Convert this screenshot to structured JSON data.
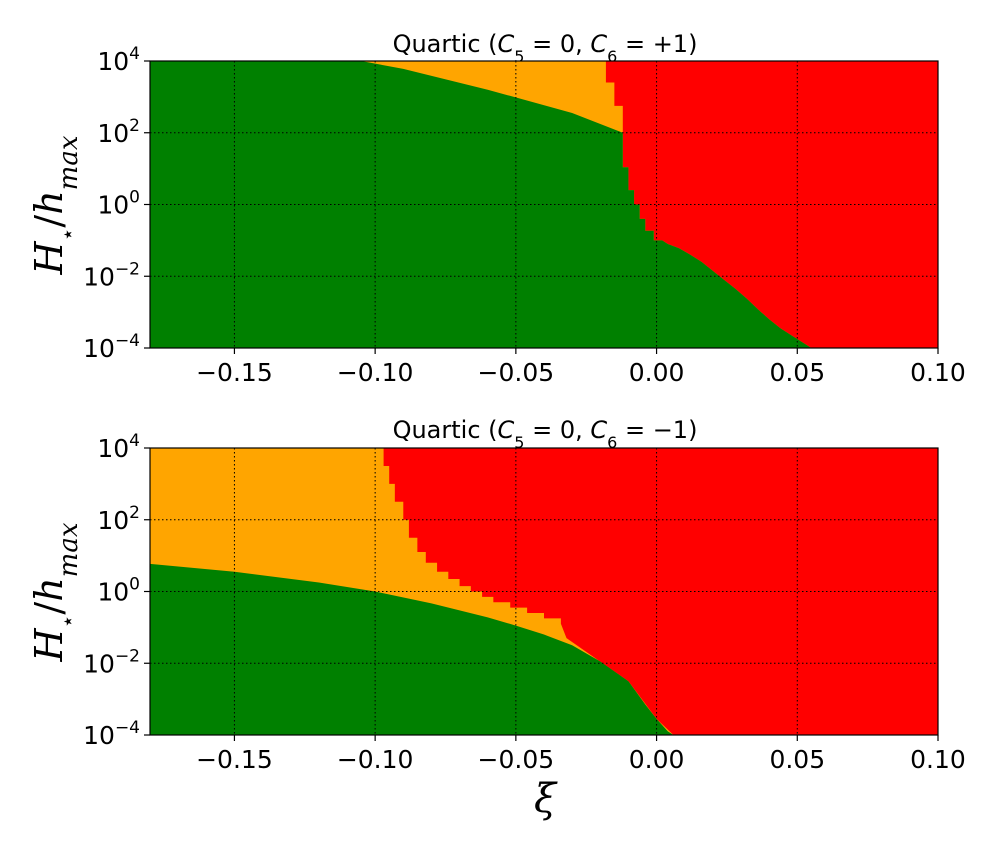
{
  "colors": {
    "green": "#008000",
    "orange": "#FFA500",
    "red": "#FF0000",
    "grid": "#000000"
  },
  "chart_data": [
    {
      "type": "heatmap",
      "title": "Quartic ($C_5 = 0$, $C_6 = +1$)",
      "title_prefix": "Quartic (",
      "title_var1": "C",
      "title_sub1": "5",
      "title_mid": " = 0, ",
      "title_var2": "C",
      "title_sub2": "6",
      "title_end": " = +1)",
      "xlabel": "",
      "ylabel": "H⋆/hmax",
      "ylabel_base": "H",
      "ylabel_sub": "⋆",
      "ylabel_div": "/",
      "ylabel_h": "h",
      "ylabel_sub2": "max",
      "x_scale": "linear",
      "y_scale": "log",
      "xlim": [
        -0.18,
        0.1
      ],
      "ylim_log10": [
        -4,
        4
      ],
      "xticks": [
        -0.15,
        -0.1,
        -0.05,
        0.0,
        0.05,
        0.1
      ],
      "xtick_labels": [
        "−0.15",
        "−0.10",
        "−0.05",
        "0.00",
        "0.05",
        "0.10"
      ],
      "yticks_log10": [
        -4,
        -2,
        0,
        2,
        4
      ],
      "ytick_bases": [
        "10",
        "10",
        "10",
        "10",
        "10"
      ],
      "ytick_exps": [
        "−4",
        "−2",
        "0",
        "2",
        "4"
      ],
      "grid": true,
      "regions": [
        "green",
        "orange",
        "red"
      ],
      "green_orange_boundary": [
        [
          -0.105,
          4.0
        ],
        [
          -0.09,
          3.78
        ],
        [
          -0.06,
          3.2
        ],
        [
          -0.03,
          2.55
        ],
        [
          -0.012,
          2.0
        ]
      ],
      "green_red_boundary_steps": [
        [
          -0.012,
          2.0
        ],
        [
          -0.012,
          1.04
        ],
        [
          -0.01,
          1.04
        ],
        [
          -0.01,
          0.4
        ],
        [
          -0.008,
          0.4
        ],
        [
          -0.008,
          0.0
        ],
        [
          -0.006,
          0.0
        ],
        [
          -0.006,
          -0.4
        ],
        [
          -0.004,
          -0.4
        ],
        [
          -0.004,
          -0.73
        ],
        [
          -0.001,
          -0.73
        ],
        [
          -0.001,
          -1.0
        ],
        [
          0.002,
          -1.0
        ],
        [
          0.004,
          -1.1
        ],
        [
          0.008,
          -1.22
        ],
        [
          0.012,
          -1.4
        ],
        [
          0.016,
          -1.6
        ],
        [
          0.02,
          -1.85
        ],
        [
          0.024,
          -2.1
        ],
        [
          0.028,
          -2.35
        ],
        [
          0.032,
          -2.62
        ],
        [
          0.036,
          -2.92
        ],
        [
          0.04,
          -3.2
        ],
        [
          0.044,
          -3.45
        ],
        [
          0.048,
          -3.65
        ],
        [
          0.052,
          -3.85
        ],
        [
          0.055,
          -4.0
        ]
      ],
      "orange_red_boundary_steps": [
        [
          -0.018,
          4.0
        ],
        [
          -0.018,
          3.4
        ],
        [
          -0.015,
          3.4
        ],
        [
          -0.015,
          2.75
        ],
        [
          -0.012,
          2.75
        ],
        [
          -0.012,
          2.0
        ]
      ]
    },
    {
      "type": "heatmap",
      "title": "Quartic ($C_5 = 0$, $C_6 = -1$)",
      "title_prefix": "Quartic (",
      "title_var1": "C",
      "title_sub1": "5",
      "title_mid": " = 0, ",
      "title_var2": "C",
      "title_sub2": "6",
      "title_end": " = −1)",
      "xlabel": "ξ",
      "ylabel": "H⋆/hmax",
      "ylabel_base": "H",
      "ylabel_sub": "⋆",
      "ylabel_div": "/",
      "ylabel_h": "h",
      "ylabel_sub2": "max",
      "x_scale": "linear",
      "y_scale": "log",
      "xlim": [
        -0.18,
        0.1
      ],
      "ylim_log10": [
        -4,
        4
      ],
      "xticks": [
        -0.15,
        -0.1,
        -0.05,
        0.0,
        0.05,
        0.1
      ],
      "xtick_labels": [
        "−0.15",
        "−0.10",
        "−0.05",
        "0.00",
        "0.05",
        "0.10"
      ],
      "yticks_log10": [
        -4,
        -2,
        0,
        2,
        4
      ],
      "ytick_bases": [
        "10",
        "10",
        "10",
        "10",
        "10"
      ],
      "ytick_exps": [
        "−4",
        "−2",
        "0",
        "2",
        "4"
      ],
      "grid": true,
      "regions": [
        "green",
        "orange",
        "red"
      ],
      "green_upper_boundary": [
        [
          -0.18,
          0.77
        ],
        [
          -0.15,
          0.55
        ],
        [
          -0.12,
          0.25
        ],
        [
          -0.1,
          0.0
        ],
        [
          -0.08,
          -0.33
        ],
        [
          -0.06,
          -0.72
        ],
        [
          -0.05,
          -0.95
        ],
        [
          -0.04,
          -1.2
        ],
        [
          -0.03,
          -1.5
        ],
        [
          -0.02,
          -1.95
        ],
        [
          -0.01,
          -2.5
        ],
        [
          -0.004,
          -3.15
        ],
        [
          0.0,
          -3.55
        ],
        [
          0.004,
          -3.9
        ],
        [
          0.006,
          -4.0
        ]
      ],
      "orange_red_boundary_steps": [
        [
          -0.097,
          4.0
        ],
        [
          -0.097,
          3.5
        ],
        [
          -0.095,
          3.5
        ],
        [
          -0.095,
          3.0
        ],
        [
          -0.093,
          3.0
        ],
        [
          -0.093,
          2.5
        ],
        [
          -0.09,
          2.5
        ],
        [
          -0.09,
          2.0
        ],
        [
          -0.088,
          2.0
        ],
        [
          -0.088,
          1.5
        ],
        [
          -0.085,
          1.5
        ],
        [
          -0.085,
          1.1
        ],
        [
          -0.082,
          1.1
        ],
        [
          -0.082,
          0.8
        ],
        [
          -0.078,
          0.8
        ],
        [
          -0.078,
          0.55
        ],
        [
          -0.074,
          0.55
        ],
        [
          -0.074,
          0.35
        ],
        [
          -0.07,
          0.35
        ],
        [
          -0.07,
          0.15
        ],
        [
          -0.066,
          0.15
        ],
        [
          -0.066,
          0.0
        ],
        [
          -0.062,
          0.0
        ],
        [
          -0.062,
          -0.15
        ],
        [
          -0.058,
          -0.15
        ],
        [
          -0.058,
          -0.3
        ],
        [
          -0.052,
          -0.3
        ],
        [
          -0.052,
          -0.45
        ],
        [
          -0.046,
          -0.45
        ],
        [
          -0.046,
          -0.6
        ],
        [
          -0.04,
          -0.6
        ],
        [
          -0.04,
          -0.75
        ],
        [
          -0.034,
          -0.75
        ],
        [
          -0.034,
          -0.9
        ],
        [
          -0.032,
          -1.3
        ]
      ]
    }
  ]
}
